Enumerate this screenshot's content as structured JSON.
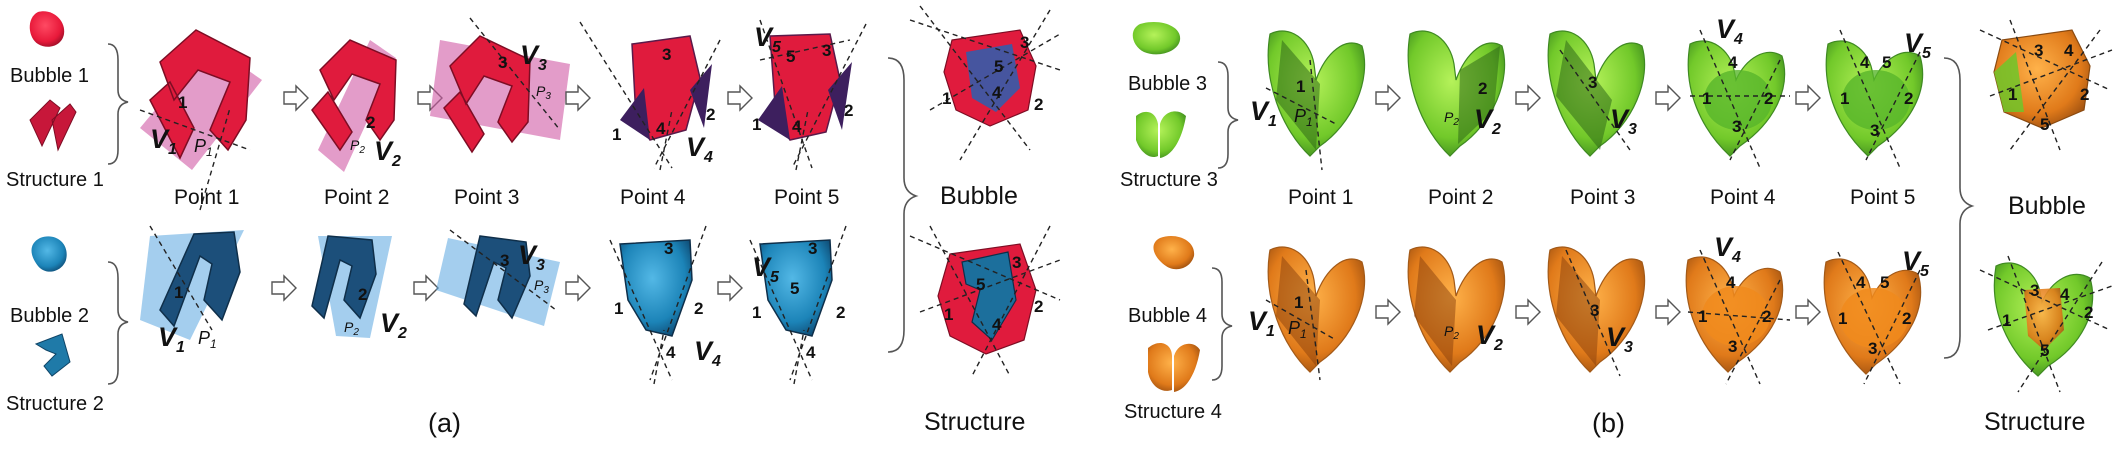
{
  "panel_a": {
    "caption": "(a)",
    "group1": {
      "bubble_label": "Bubble 1",
      "structure_label": "Structure 1"
    },
    "group2": {
      "bubble_label": "Bubble 2",
      "structure_label": "Structure 2"
    },
    "steps": [
      "Point 1",
      "Point 2",
      "Point 3",
      "Point 4",
      "Point 5"
    ],
    "result_top": "Bubble",
    "result_bottom": "Structure",
    "colors": {
      "bubble_red": "#e8193a",
      "bubble_dark": "#8c0f2b",
      "plane_pink": "#d05aa5",
      "structure_blue": "#1c6f9c",
      "structure_dark": "#163a5c",
      "plane_blue": "#5aa5e0"
    }
  },
  "panel_b": {
    "caption": "(b)",
    "group3": {
      "bubble_label": "Bubble 3",
      "structure_label": "Structure 3"
    },
    "group4": {
      "bubble_label": "Bubble 4",
      "structure_label": "Structure 4"
    },
    "steps": [
      "Point 1",
      "Point 2",
      "Point 3",
      "Point 4",
      "Point 5"
    ],
    "result_top": "Bubble",
    "result_bottom": "Structure",
    "colors": {
      "green": "#6fc72a",
      "green_dark": "#3f8a22",
      "orange": "#e07a1a",
      "orange_dark": "#a35a18"
    }
  },
  "annotations": {
    "v": [
      "V",
      "V",
      "V",
      "V",
      "V"
    ],
    "v_sub": [
      "1",
      "2",
      "3",
      "4",
      "5"
    ],
    "p": [
      "P",
      "P",
      "P"
    ],
    "p_sub": [
      "1",
      "2",
      "3"
    ],
    "nums": [
      "1",
      "2",
      "3",
      "4",
      "5"
    ]
  }
}
